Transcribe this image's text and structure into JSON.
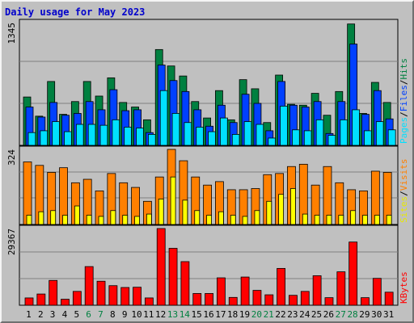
{
  "chart_data": {
    "type": "bar",
    "title": "Daily usage for May 2023",
    "categories": [
      "1",
      "2",
      "3",
      "4",
      "5",
      "6",
      "7",
      "8",
      "9",
      "10",
      "11",
      "12",
      "13",
      "14",
      "15",
      "16",
      "17",
      "18",
      "19",
      "20",
      "21",
      "22",
      "23",
      "24",
      "25",
      "26",
      "27",
      "28",
      "29",
      "30",
      "31"
    ],
    "weekend_days": [
      "6",
      "7",
      "13",
      "14",
      "20",
      "21",
      "27",
      "28"
    ],
    "panels": [
      {
        "id": "hits",
        "max_label": "1345",
        "ymax": 1345,
        "legend": [
          "Pages",
          "Files",
          "Hits"
        ],
        "series": [
          {
            "name": "Hits",
            "color": "#008040",
            "values": [
              530,
              320,
              700,
              340,
              480,
              700,
              540,
              740,
              470,
              420,
              280,
              1050,
              870,
              760,
              480,
              300,
              600,
              280,
              720,
              620,
              250,
              770,
              450,
              440,
              570,
              330,
              590,
              1330,
              350,
              690,
              470
            ]
          },
          {
            "name": "Files",
            "color": "#0040ff",
            "values": [
              420,
              310,
              470,
              330,
              350,
              480,
              390,
              610,
              380,
              390,
              140,
              880,
              710,
              590,
              390,
              210,
              440,
              250,
              560,
              460,
              160,
              700,
              440,
              420,
              480,
              130,
              480,
              1110,
              340,
              600,
              290
            ]
          },
          {
            "name": "Pages",
            "color": "#00e0ff",
            "values": [
              140,
              160,
              260,
              150,
              230,
              230,
              220,
              280,
              200,
              190,
              120,
              600,
              350,
              250,
              200,
              150,
              300,
              120,
              260,
              230,
              80,
              430,
              170,
              160,
              280,
              110,
              280,
              390,
              160,
              260,
              170
            ]
          }
        ]
      },
      {
        "id": "visits",
        "max_label": "324",
        "ymax": 324,
        "legend": [
          "Sites",
          "Visits"
        ],
        "series": [
          {
            "name": "Visits",
            "color": "#ff8000",
            "values": [
              270,
              255,
              225,
              245,
              180,
              195,
              145,
              220,
              180,
              160,
              100,
              205,
              324,
              275,
              205,
              170,
              185,
              150,
              150,
              155,
              215,
              220,
              250,
              260,
              170,
              250,
              180,
              150,
              145,
              230,
              225
            ]
          },
          {
            "name": "Sites",
            "color": "#ffff00",
            "values": [
              40,
              55,
              60,
              40,
              80,
              40,
              35,
              60,
              40,
              35,
              45,
              110,
              205,
              105,
              60,
              40,
              55,
              40,
              35,
              60,
              100,
              130,
              155,
              45,
              40,
              40,
              40,
              60,
              40,
              40,
              40
            ]
          }
        ]
      },
      {
        "id": "kbytes",
        "max_label": "29367",
        "ymax": 29367,
        "legend": [
          "KBytes"
        ],
        "series": [
          {
            "name": "KBytes",
            "color": "#ff0000",
            "values": [
              2800,
              4300,
              9500,
              2300,
              5300,
              14800,
              9200,
              7500,
              6800,
              6900,
              2800,
              29367,
              21800,
              16700,
              4500,
              4500,
              10500,
              3000,
              10800,
              5700,
              4000,
              14100,
              3800,
              5300,
              11300,
              2900,
              12800,
              24200,
              2900,
              10300,
              5000
            ]
          }
        ]
      }
    ]
  }
}
